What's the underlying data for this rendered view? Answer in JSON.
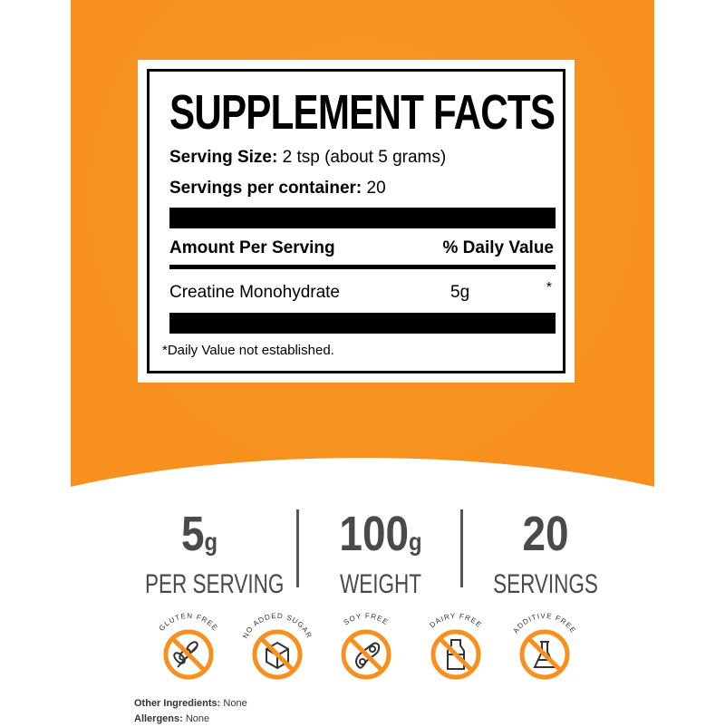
{
  "colors": {
    "brand_orange": "#F7901E",
    "text_gray": "#4a4a4a"
  },
  "facts": {
    "title": "SUPPLEMENT FACTS",
    "serving_size_label": "Serving Size:",
    "serving_size_value": "2 tsp (about 5 grams)",
    "servings_label": "Servings per container:",
    "servings_value": "20",
    "amount_header": "Amount Per Serving",
    "dv_header": "% Daily Value",
    "ingredient": "Creatine Monohydrate",
    "amount": "5g",
    "dv": "*",
    "footnote": "*Daily Value not established."
  },
  "stats": [
    {
      "value": "5",
      "unit": "g",
      "label": "PER SERVING"
    },
    {
      "value": "100",
      "unit": "g",
      "label": "WEIGHT"
    },
    {
      "value": "20",
      "unit": "",
      "label": "SERVINGS"
    }
  ],
  "badges": [
    {
      "text": "GLUTEN FREE",
      "icon": "wheat-icon"
    },
    {
      "text": "NO ADDED SUGAR",
      "icon": "sugar-cube-icon"
    },
    {
      "text": "SOY FREE",
      "icon": "soybean-icon"
    },
    {
      "text": "DAIRY FREE",
      "icon": "milk-bottle-icon"
    },
    {
      "text": "ADDITIVE FREE",
      "icon": "flask-icon"
    }
  ],
  "footer": {
    "other_label": "Other Ingredients:",
    "other_value": "None",
    "allergens_label": "Allergens:",
    "allergens_value": "None"
  }
}
